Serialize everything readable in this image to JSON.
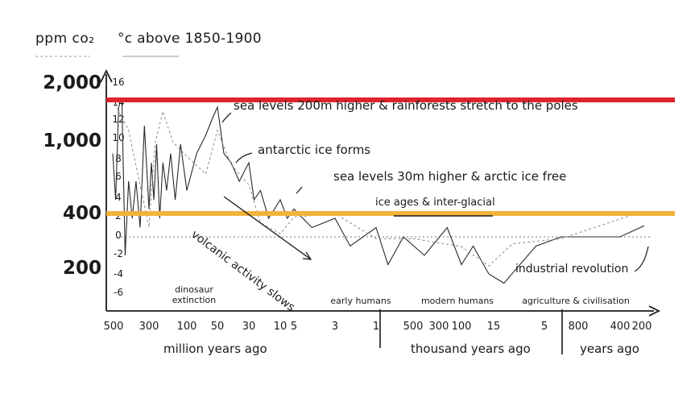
{
  "legend": {
    "co2_label": "ppm co₂",
    "temp_label": "°c above 1850-1900"
  },
  "chart_data": {
    "type": "line",
    "title": "",
    "y_left_label": "ppm co₂",
    "y_right_label": "°c above 1850-1900",
    "ppm_ticks": [
      "2,000",
      "1,000",
      "400",
      "200"
    ],
    "temp_ticks": [
      "16",
      "14",
      "12",
      "10",
      "8",
      "6",
      "4",
      "2",
      "0",
      "-2",
      "-4",
      "-6"
    ],
    "reference_lines": [
      {
        "name": "2,000 ppm",
        "value_ppm": 2000,
        "color": "#e0242d"
      },
      {
        "name": "400 ppm",
        "value_ppm": 400,
        "color": "#f2b33d"
      }
    ],
    "x_segments": [
      {
        "unit": "million years ago",
        "ticks": [
          "500",
          "300",
          "100",
          "50",
          "30",
          "10",
          "5",
          "3",
          "1"
        ]
      },
      {
        "unit": "thousand years ago",
        "ticks": [
          "500",
          "300",
          "100",
          "15",
          "5"
        ]
      },
      {
        "unit": "years ago",
        "ticks": [
          "800",
          "400",
          "200"
        ]
      }
    ],
    "eras": [
      "dinosaur extinction",
      "early humans",
      "modern humans",
      "agriculture & civilisation"
    ],
    "annotations": [
      "sea levels 200m higher & rainforests stretch to the poles",
      "antarctic ice forms",
      "sea levels 30m higher & arctic ice free",
      "ice ages & inter-glacial",
      "volcanic activity slows",
      "industrial revolution"
    ],
    "series": [
      {
        "name": "°c above 1850-1900",
        "style": "solid",
        "x": [
          500,
          480,
          460,
          440,
          420,
          400,
          380,
          360,
          340,
          320,
          300,
          280,
          260,
          240,
          220,
          200,
          180,
          160,
          140,
          120,
          100,
          80,
          65,
          55,
          50,
          45,
          40,
          35,
          30,
          25,
          20,
          15,
          10,
          7,
          5,
          4,
          3,
          2,
          1,
          0.8,
          0.6,
          0.4,
          0.2,
          0.1,
          0.05,
          0.02,
          0.012,
          0.006,
          0.002,
          0.0008,
          0.0004,
          0.0002
        ],
        "values": [
          9,
          4,
          14,
          15,
          -2,
          6,
          2,
          6,
          1,
          12,
          3,
          8,
          4,
          10,
          2,
          8,
          5,
          9,
          4,
          10,
          5,
          9,
          11,
          13,
          14,
          9,
          8,
          6,
          8,
          4,
          5,
          2,
          4,
          2,
          3,
          1,
          2,
          -1,
          1,
          -3,
          0,
          -2,
          1,
          -3,
          -1,
          -4,
          -5,
          -1,
          0,
          0,
          0,
          1.2
        ]
      },
      {
        "name": "ppm co₂",
        "style": "dashed",
        "x": [
          500,
          400,
          300,
          250,
          200,
          150,
          100,
          65,
          50,
          40,
          30,
          20,
          10,
          5,
          3,
          1,
          0.5,
          0.1,
          0.02,
          0.01,
          0.002,
          0.0002
        ],
        "values": [
          2000,
          1300,
          330,
          1100,
          1700,
          1100,
          900,
          700,
          1300,
          800,
          600,
          350,
          300,
          380,
          400,
          280,
          280,
          250,
          190,
          260,
          280,
          415
        ]
      }
    ]
  }
}
